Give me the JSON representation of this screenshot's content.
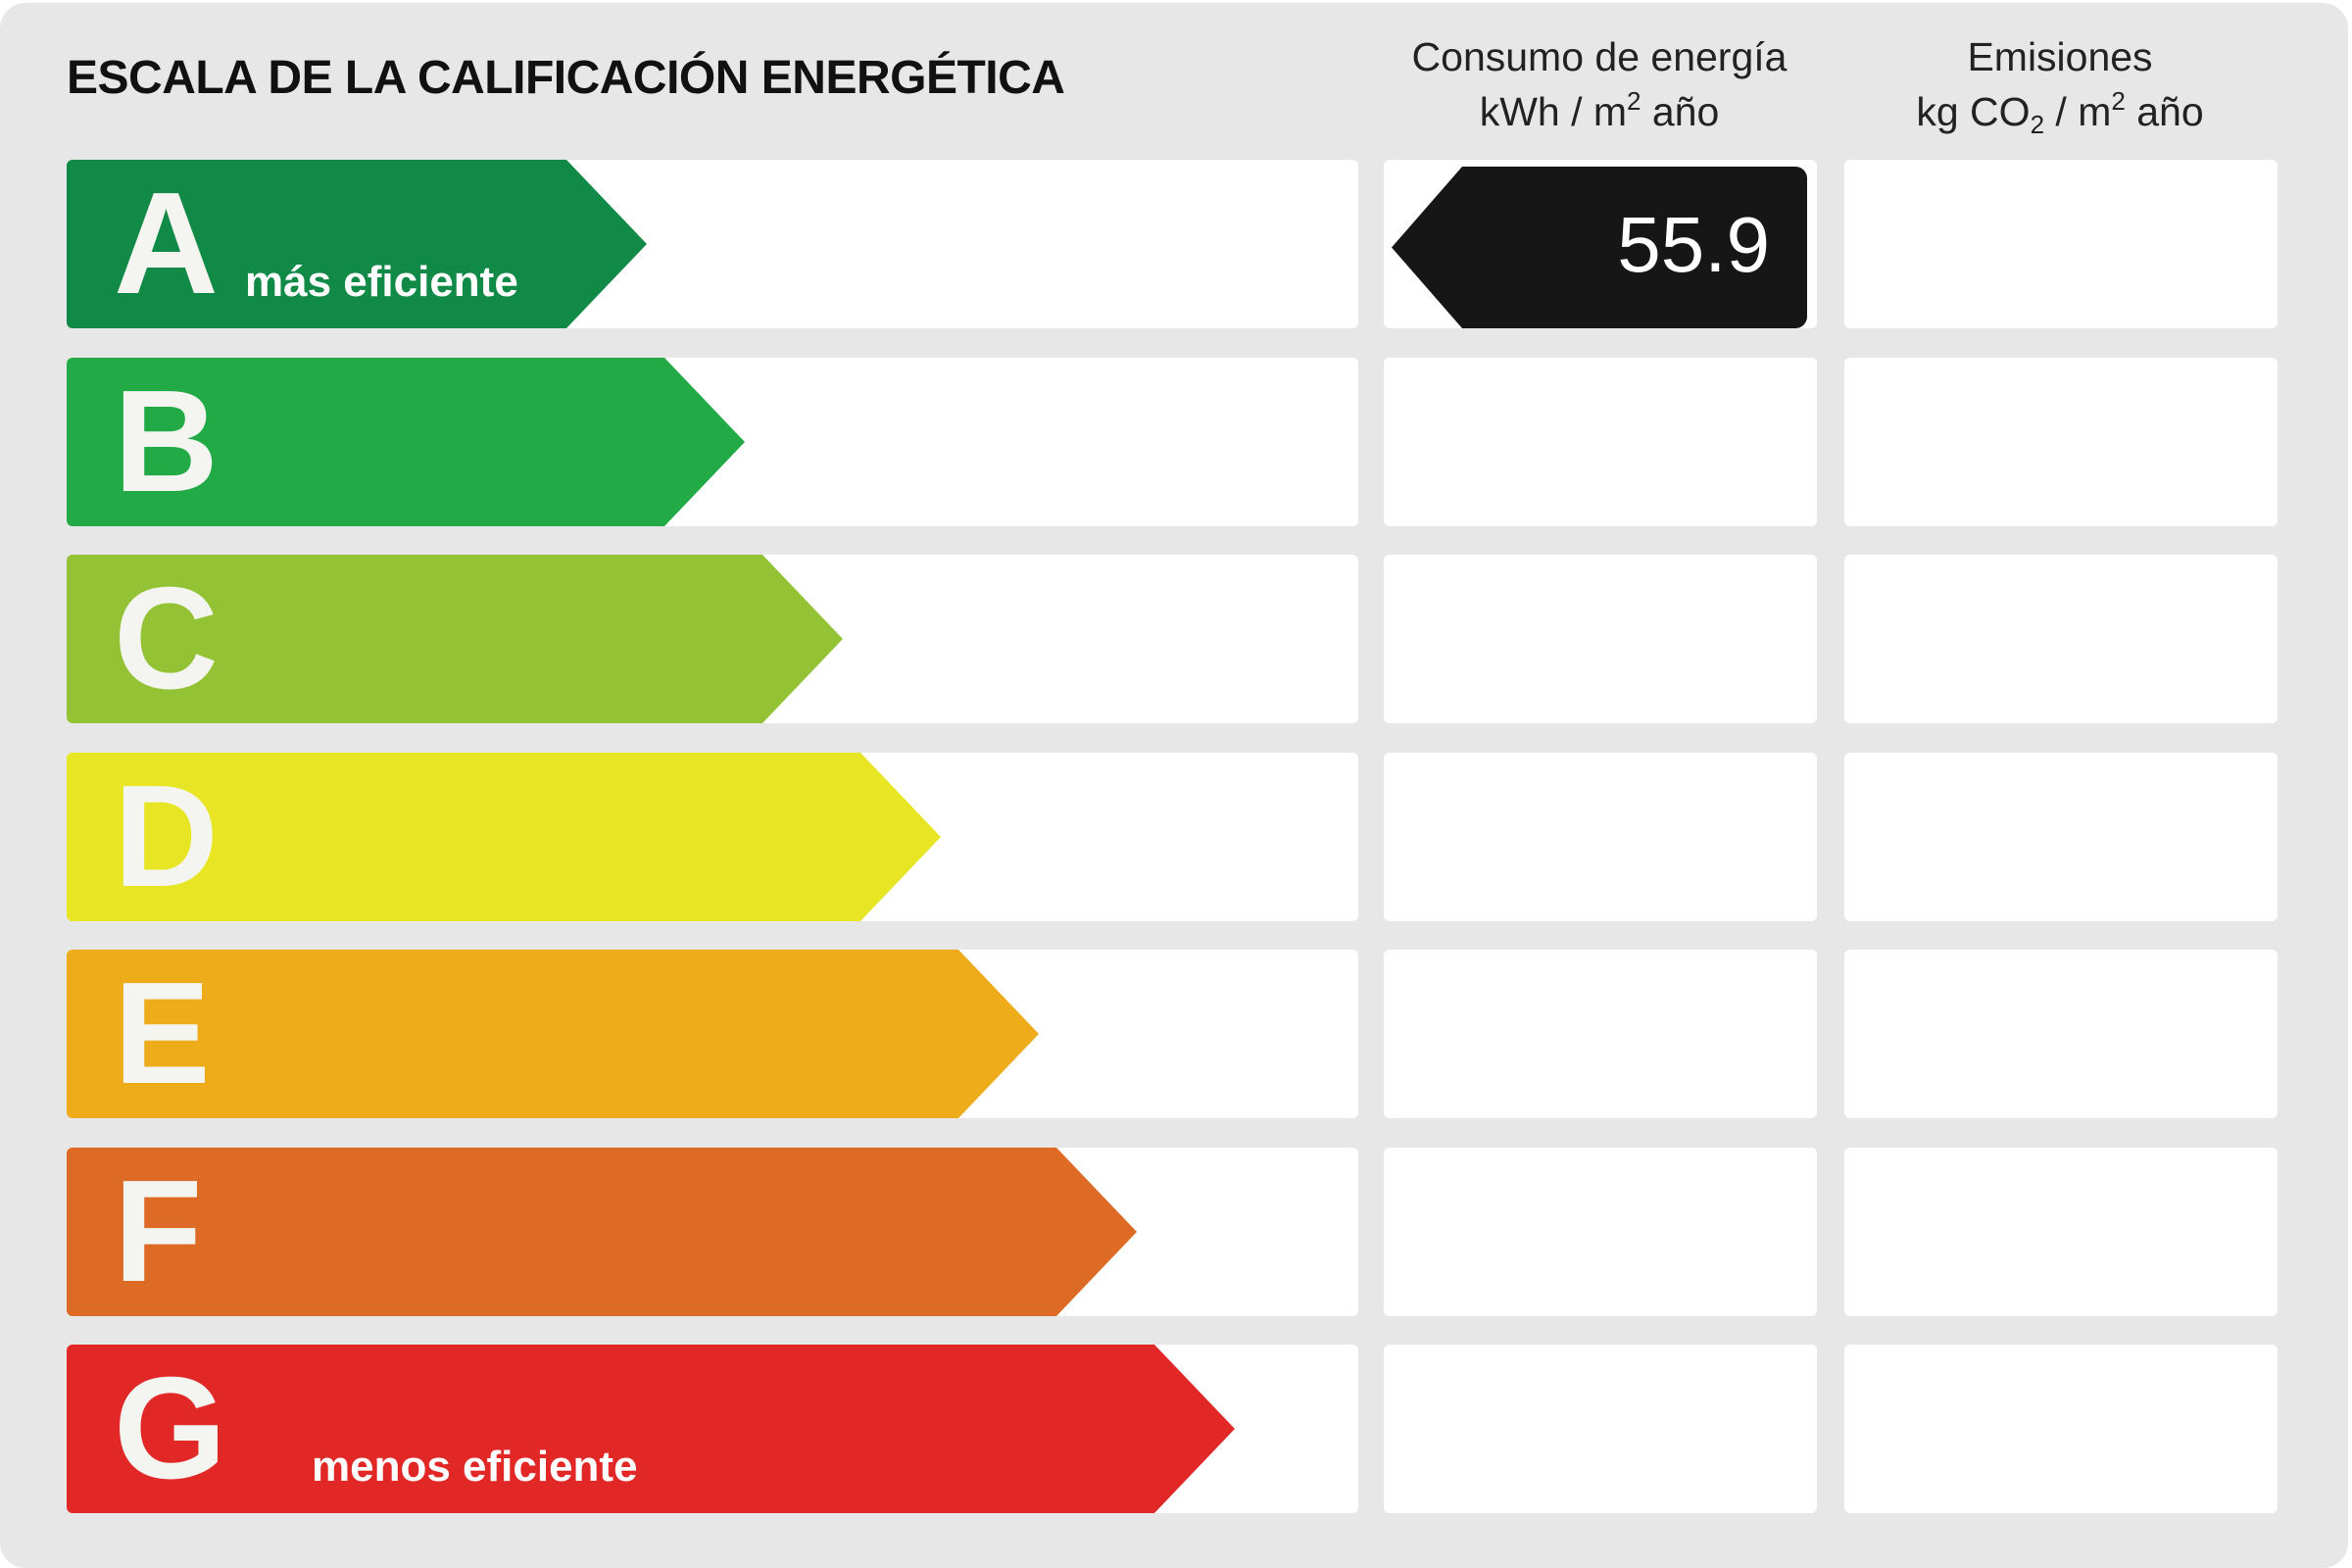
{
  "title": "ESCALA DE LA CALIFICACIÓN ENERGÉTICA",
  "columns": {
    "energy": {
      "line1": "Consumo de energía",
      "unit_prefix": "kWh / m",
      "unit_sup": "2",
      "unit_suffix": " año"
    },
    "emissions": {
      "line1": "Emisiones",
      "unit_prefix": "kg CO",
      "unit_sub": "2",
      "unit_mid": " / m",
      "unit_sup": "2",
      "unit_suffix": " año"
    }
  },
  "ratings": [
    {
      "letter": "A",
      "caption": "más eficiente",
      "color": "#118a48"
    },
    {
      "letter": "B",
      "caption": "",
      "color": "#21aa45"
    },
    {
      "letter": "C",
      "caption": "",
      "color": "#93c334"
    },
    {
      "letter": "D",
      "caption": "",
      "color": "#e8e524"
    },
    {
      "letter": "E",
      "caption": "",
      "color": "#eeab1a"
    },
    {
      "letter": "F",
      "caption": "",
      "color": "#dd6a25"
    },
    {
      "letter": "G",
      "caption": "menos eficiente",
      "color": "#e22727"
    }
  ],
  "energy_value": {
    "rating": "A",
    "value": "55.9"
  },
  "emissions_value": {
    "rating": "",
    "value": ""
  }
}
